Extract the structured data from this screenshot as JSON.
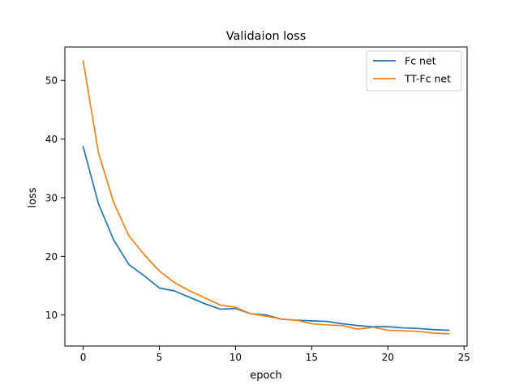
{
  "chart_data": {
    "type": "line",
    "title": "Validaion loss",
    "xlabel": "epoch",
    "ylabel": "loss",
    "xlim": [
      -1.2,
      25.2
    ],
    "ylim": [
      4.7,
      55.7
    ],
    "xticks": [
      0,
      5,
      10,
      15,
      20,
      25
    ],
    "yticks": [
      10,
      20,
      30,
      40,
      50
    ],
    "grid": false,
    "legend": "top-right",
    "x": [
      0,
      1,
      2,
      3,
      4,
      5,
      6,
      7,
      8,
      9,
      10,
      11,
      12,
      13,
      14,
      15,
      16,
      17,
      18,
      19,
      20,
      21,
      22,
      23,
      24
    ],
    "series": [
      {
        "name": "Fc net",
        "color": "#1f77b4",
        "values": [
          38.7,
          29.0,
          22.8,
          18.6,
          16.7,
          14.6,
          14.1,
          13.0,
          11.9,
          11.0,
          11.1,
          10.2,
          10.0,
          9.3,
          9.1,
          9.0,
          8.9,
          8.5,
          8.2,
          8.0,
          8.0,
          7.8,
          7.7,
          7.5,
          7.4
        ]
      },
      {
        "name": "TT-Fc net",
        "color": "#ff7f0e",
        "values": [
          53.3,
          37.7,
          29.2,
          23.5,
          20.3,
          17.5,
          15.5,
          14.1,
          12.9,
          11.7,
          11.3,
          10.2,
          9.8,
          9.3,
          9.1,
          8.5,
          8.3,
          8.2,
          7.6,
          7.9,
          7.4,
          7.3,
          7.2,
          6.9,
          6.8
        ]
      }
    ]
  }
}
